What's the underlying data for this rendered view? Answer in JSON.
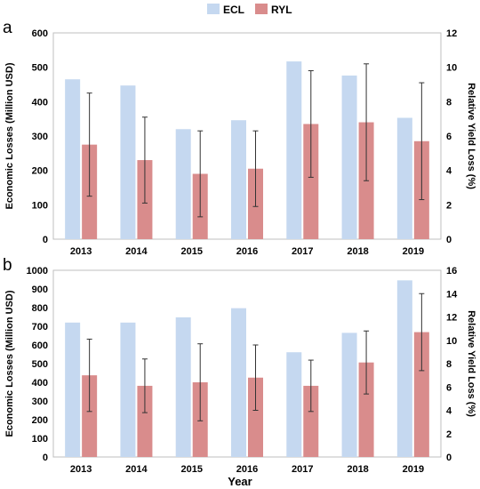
{
  "legend": [
    {
      "name": "ECL",
      "color": "#c5d8f0"
    },
    {
      "name": "RYL",
      "color": "#d98c8c"
    }
  ],
  "x_label": "Year",
  "chart_data": [
    {
      "type": "bar",
      "panel_label": "a",
      "categories": [
        "2013",
        "2014",
        "2015",
        "2016",
        "2017",
        "2018",
        "2019"
      ],
      "ylabel": "Economic Losses (Million USD)",
      "ylim": [
        0,
        600
      ],
      "yticks": [
        "0",
        "100",
        "200",
        "300",
        "400",
        "500",
        "600"
      ],
      "y2label": "Relative Yield Loss (%)",
      "y2lim": [
        0,
        12
      ],
      "y2ticks": [
        "0",
        "2",
        "4",
        "6",
        "8",
        "10",
        "12"
      ],
      "series": [
        {
          "name": "ECL",
          "axis": "left",
          "color": "#c5d8f0",
          "values": [
            465,
            447,
            320,
            346,
            517,
            476,
            353
          ]
        },
        {
          "name": "RYL",
          "axis": "right",
          "color": "#d98c8c",
          "values": [
            5.5,
            4.6,
            3.8,
            4.1,
            6.7,
            6.8,
            5.7
          ],
          "error": [
            3.0,
            2.5,
            2.5,
            2.2,
            3.1,
            3.4,
            3.4
          ]
        }
      ]
    },
    {
      "type": "bar",
      "panel_label": "b",
      "categories": [
        "2013",
        "2014",
        "2015",
        "2016",
        "2017",
        "2018",
        "2019"
      ],
      "ylabel": "Economic Losses (Million USD)",
      "ylim": [
        0,
        1000
      ],
      "yticks": [
        "0",
        "100",
        "200",
        "300",
        "400",
        "500",
        "600",
        "700",
        "800",
        "900",
        "1000"
      ],
      "y2label": "Relative Yield Loss (%)",
      "y2lim": [
        0,
        16
      ],
      "y2ticks": [
        "0",
        "2",
        "4",
        "6",
        "8",
        "10",
        "12",
        "14",
        "16"
      ],
      "series": [
        {
          "name": "ECL",
          "axis": "left",
          "color": "#c5d8f0",
          "values": [
            720,
            720,
            748,
            797,
            561,
            665,
            946
          ]
        },
        {
          "name": "RYL",
          "axis": "right",
          "color": "#d98c8c",
          "values": [
            7.0,
            6.1,
            6.4,
            6.8,
            6.1,
            8.1,
            10.7
          ],
          "error": [
            3.1,
            2.3,
            3.3,
            2.8,
            2.2,
            2.7,
            3.3
          ]
        }
      ]
    }
  ]
}
